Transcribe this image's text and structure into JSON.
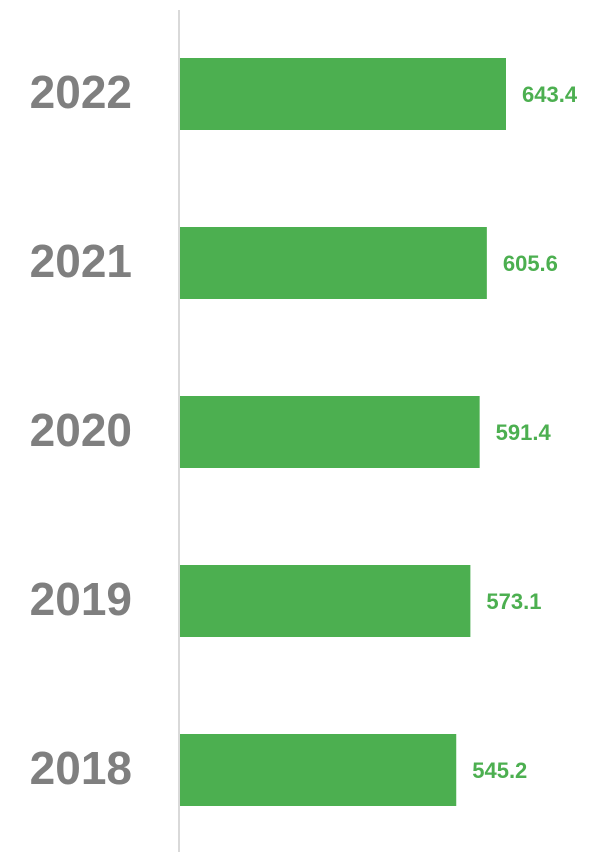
{
  "chart_data": {
    "type": "bar",
    "orientation": "horizontal",
    "categories": [
      "2022",
      "2021",
      "2020",
      "2019",
      "2018"
    ],
    "values": [
      643.4,
      605.6,
      591.4,
      573.1,
      545.2
    ],
    "color": "#4caf50"
  }
}
